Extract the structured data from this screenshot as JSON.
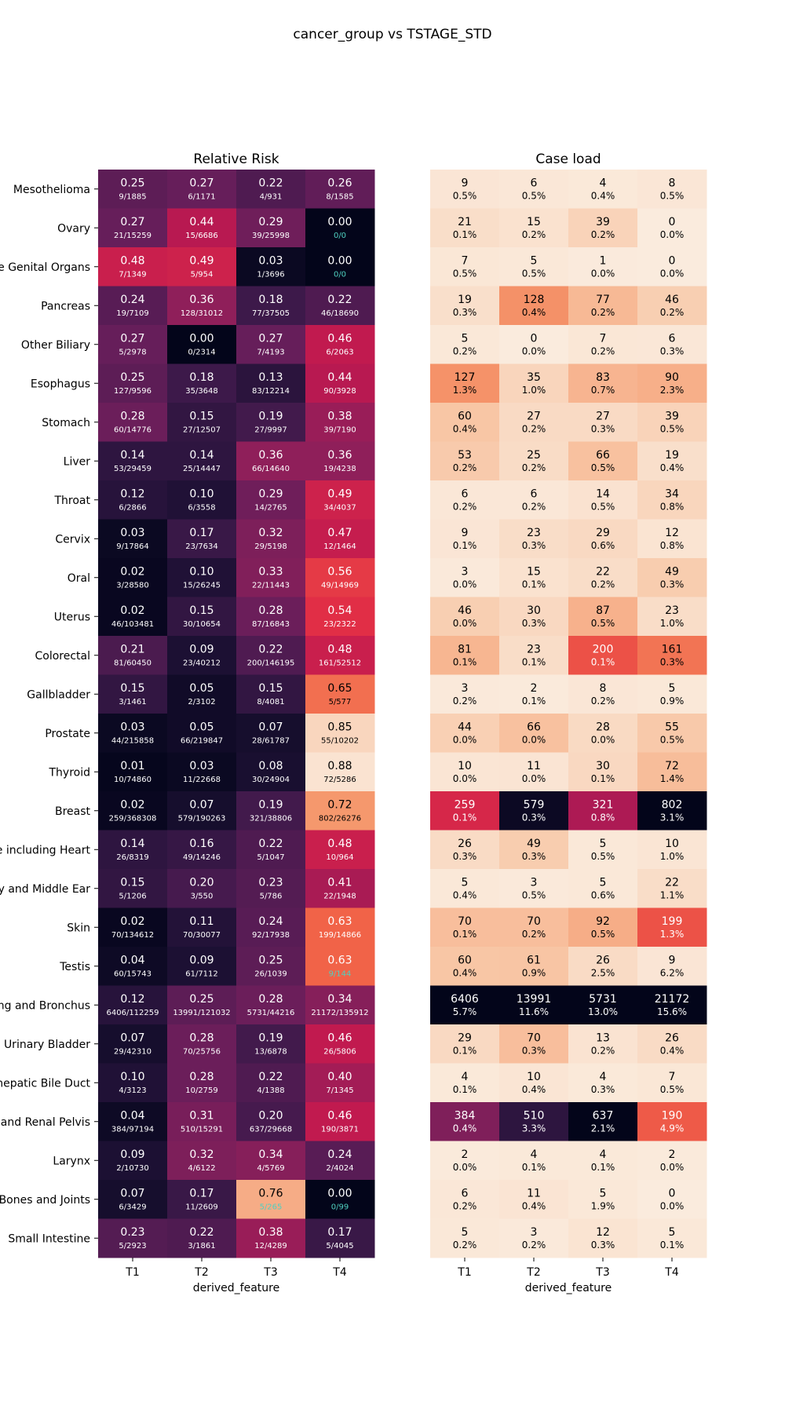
{
  "figure_title": "cancer_group vs TSTAGE_STD",
  "chart_data": [
    {
      "type": "heatmap",
      "title": "Relative Risk",
      "xlabel": "derived_feature",
      "ylabel": "",
      "colormap": "rocket",
      "vmin": 0,
      "vmax": 0.9,
      "categories_x": [
        "T1",
        "T2",
        "T3",
        "T4"
      ],
      "categories_y": [
        "Mesothelioma",
        "Ovary",
        "e Genital Organs",
        "Pancreas",
        "Other Biliary",
        "Esophagus",
        "Stomach",
        "Liver",
        "Throat",
        "Cervix",
        "Oral",
        "Uterus",
        "Colorectal",
        "Gallbladder",
        "Prostate",
        "Thyroid",
        "Breast",
        "e including Heart",
        "y and Middle Ear",
        "Skin",
        "Testis",
        "ng and Bronchus",
        "Urinary Bladder",
        "hepatic Bile Duct",
        "and Renal Pelvis",
        "Larynx",
        "Bones and Joints",
        "Small Intestine"
      ],
      "values": [
        [
          0.25,
          0.27,
          0.22,
          0.26
        ],
        [
          0.27,
          0.44,
          0.29,
          0.0
        ],
        [
          0.48,
          0.49,
          0.03,
          0.0
        ],
        [
          0.24,
          0.36,
          0.18,
          0.22
        ],
        [
          0.27,
          0.0,
          0.27,
          0.46
        ],
        [
          0.25,
          0.18,
          0.13,
          0.44
        ],
        [
          0.28,
          0.15,
          0.19,
          0.38
        ],
        [
          0.14,
          0.14,
          0.36,
          0.36
        ],
        [
          0.12,
          0.1,
          0.29,
          0.49
        ],
        [
          0.03,
          0.17,
          0.32,
          0.47
        ],
        [
          0.02,
          0.1,
          0.33,
          0.56
        ],
        [
          0.02,
          0.15,
          0.28,
          0.54
        ],
        [
          0.21,
          0.09,
          0.22,
          0.48
        ],
        [
          0.15,
          0.05,
          0.15,
          0.65
        ],
        [
          0.03,
          0.05,
          0.07,
          0.85
        ],
        [
          0.01,
          0.03,
          0.08,
          0.88
        ],
        [
          0.02,
          0.07,
          0.19,
          0.72
        ],
        [
          0.14,
          0.16,
          0.22,
          0.48
        ],
        [
          0.15,
          0.2,
          0.23,
          0.41
        ],
        [
          0.02,
          0.11,
          0.24,
          0.63
        ],
        [
          0.04,
          0.09,
          0.25,
          0.63
        ],
        [
          0.12,
          0.25,
          0.28,
          0.34
        ],
        [
          0.07,
          0.28,
          0.19,
          0.46
        ],
        [
          0.1,
          0.28,
          0.22,
          0.4
        ],
        [
          0.04,
          0.31,
          0.2,
          0.46
        ],
        [
          0.09,
          0.32,
          0.34,
          0.24
        ],
        [
          0.07,
          0.17,
          0.76,
          0.0
        ],
        [
          0.23,
          0.22,
          0.38,
          0.17
        ]
      ],
      "labels": [
        [
          "0.25",
          "0.27",
          "0.22",
          "0.26"
        ],
        [
          "0.27",
          "0.44",
          "0.29",
          "0.00"
        ],
        [
          "0.48",
          "0.49",
          "0.03",
          "0.00"
        ],
        [
          "0.24",
          "0.36",
          "0.18",
          "0.22"
        ],
        [
          "0.27",
          "0.00",
          "0.27",
          "0.46"
        ],
        [
          "0.25",
          "0.18",
          "0.13",
          "0.44"
        ],
        [
          "0.28",
          "0.15",
          "0.19",
          "0.38"
        ],
        [
          "0.14",
          "0.14",
          "0.36",
          "0.36"
        ],
        [
          "0.12",
          "0.10",
          "0.29",
          "0.49"
        ],
        [
          "0.03",
          "0.17",
          "0.32",
          "0.47"
        ],
        [
          "0.02",
          "0.10",
          "0.33",
          "0.56"
        ],
        [
          "0.02",
          "0.15",
          "0.28",
          "0.54"
        ],
        [
          "0.21",
          "0.09",
          "0.22",
          "0.48"
        ],
        [
          "0.15",
          "0.05",
          "0.15",
          "0.65"
        ],
        [
          "0.03",
          "0.05",
          "0.07",
          "0.85"
        ],
        [
          "0.01",
          "0.03",
          "0.08",
          "0.88"
        ],
        [
          "0.02",
          "0.07",
          "0.19",
          "0.72"
        ],
        [
          "0.14",
          "0.16",
          "0.22",
          "0.48"
        ],
        [
          "0.15",
          "0.20",
          "0.23",
          "0.41"
        ],
        [
          "0.02",
          "0.11",
          "0.24",
          "0.63"
        ],
        [
          "0.04",
          "0.09",
          "0.25",
          "0.63"
        ],
        [
          "0.12",
          "0.25",
          "0.28",
          "0.34"
        ],
        [
          "0.07",
          "0.28",
          "0.19",
          "0.46"
        ],
        [
          "0.10",
          "0.28",
          "0.22",
          "0.40"
        ],
        [
          "0.04",
          "0.31",
          "0.20",
          "0.46"
        ],
        [
          "0.09",
          "0.32",
          "0.34",
          "0.24"
        ],
        [
          "0.07",
          "0.17",
          "0.76",
          "0.00"
        ],
        [
          "0.23",
          "0.22",
          "0.38",
          "0.17"
        ]
      ],
      "sublabels": [
        [
          "9/1885",
          "6/1171",
          "4/931",
          "8/1585"
        ],
        [
          "21/15259",
          "15/6686",
          "39/25998",
          "0/0"
        ],
        [
          "7/1349",
          "5/954",
          "1/3696",
          "0/0"
        ],
        [
          "19/7109",
          "128/31012",
          "77/37505",
          "46/18690"
        ],
        [
          "5/2978",
          "0/2314",
          "7/4193",
          "6/2063"
        ],
        [
          "127/9596",
          "35/3648",
          "83/12214",
          "90/3928"
        ],
        [
          "60/14776",
          "27/12507",
          "27/9997",
          "39/7190"
        ],
        [
          "53/29459",
          "25/14447",
          "66/14640",
          "19/4238"
        ],
        [
          "6/2866",
          "6/3558",
          "14/2765",
          "34/4037"
        ],
        [
          "9/17864",
          "23/7634",
          "29/5198",
          "12/1464"
        ],
        [
          "3/28580",
          "15/26245",
          "22/11443",
          "49/14969"
        ],
        [
          "46/103481",
          "30/10654",
          "87/16843",
          "23/2322"
        ],
        [
          "81/60450",
          "23/40212",
          "200/146195",
          "161/52512"
        ],
        [
          "3/1461",
          "2/3102",
          "8/4081",
          "5/577"
        ],
        [
          "44/215858",
          "66/219847",
          "28/61787",
          "55/10202"
        ],
        [
          "10/74860",
          "11/22668",
          "30/24904",
          "72/5286"
        ],
        [
          "259/368308",
          "579/190263",
          "321/38806",
          "802/26276"
        ],
        [
          "26/8319",
          "49/14246",
          "5/1047",
          "10/964"
        ],
        [
          "5/1206",
          "3/550",
          "5/786",
          "22/1948"
        ],
        [
          "70/134612",
          "70/30077",
          "92/17938",
          "199/14866"
        ],
        [
          "60/15743",
          "61/7112",
          "26/1039",
          "9/144"
        ],
        [
          "6406/112259",
          "13991/121032",
          "5731/44216",
          "21172/135912"
        ],
        [
          "29/42310",
          "70/25756",
          "13/6878",
          "26/5806"
        ],
        [
          "4/3123",
          "10/2759",
          "4/1388",
          "7/1345"
        ],
        [
          "384/97194",
          "510/15291",
          "637/29668",
          "190/3871"
        ],
        [
          "2/10730",
          "4/6122",
          "4/5769",
          "2/4024"
        ],
        [
          "6/3429",
          "11/2609",
          "5/265",
          "0/99"
        ],
        [
          "5/2923",
          "3/1861",
          "12/4289",
          "5/4045"
        ]
      ],
      "highlight_sublabels": [
        [
          1,
          3
        ],
        [
          2,
          3
        ],
        [
          20,
          3
        ],
        [
          26,
          2
        ],
        [
          26,
          3
        ]
      ],
      "highlight_color": "#4fd0c0"
    },
    {
      "type": "heatmap",
      "title": "Case load",
      "xlabel": "derived_feature",
      "ylabel": "",
      "colormap": "rocket_r",
      "vmin": 0,
      "vmax": 600,
      "categories_x": [
        "T1",
        "T2",
        "T3",
        "T4"
      ],
      "categories_y": [
        "Mesothelioma",
        "Ovary",
        "e Genital Organs",
        "Pancreas",
        "Other Biliary",
        "Esophagus",
        "Stomach",
        "Liver",
        "Throat",
        "Cervix",
        "Oral",
        "Uterus",
        "Colorectal",
        "Gallbladder",
        "Prostate",
        "Thyroid",
        "Breast",
        "e including Heart",
        "y and Middle Ear",
        "Skin",
        "Testis",
        "ng and Bronchus",
        "Urinary Bladder",
        "hepatic Bile Duct",
        "and Renal Pelvis",
        "Larynx",
        "Bones and Joints",
        "Small Intestine"
      ],
      "values": [
        [
          9,
          6,
          4,
          8
        ],
        [
          21,
          15,
          39,
          0
        ],
        [
          7,
          5,
          1,
          0
        ],
        [
          19,
          128,
          77,
          46
        ],
        [
          5,
          0,
          7,
          6
        ],
        [
          127,
          35,
          83,
          90
        ],
        [
          60,
          27,
          27,
          39
        ],
        [
          53,
          25,
          66,
          19
        ],
        [
          6,
          6,
          14,
          34
        ],
        [
          9,
          23,
          29,
          12
        ],
        [
          3,
          15,
          22,
          49
        ],
        [
          46,
          30,
          87,
          23
        ],
        [
          81,
          23,
          200,
          161
        ],
        [
          3,
          2,
          8,
          5
        ],
        [
          44,
          66,
          28,
          55
        ],
        [
          10,
          11,
          30,
          72
        ],
        [
          259,
          579,
          321,
          802
        ],
        [
          26,
          49,
          5,
          10
        ],
        [
          5,
          3,
          5,
          22
        ],
        [
          70,
          70,
          92,
          199
        ],
        [
          60,
          61,
          26,
          9
        ],
        [
          6406,
          13991,
          5731,
          21172
        ],
        [
          29,
          70,
          13,
          26
        ],
        [
          4,
          10,
          4,
          7
        ],
        [
          384,
          510,
          637,
          190
        ],
        [
          2,
          4,
          4,
          2
        ],
        [
          6,
          11,
          5,
          0
        ],
        [
          5,
          3,
          12,
          5
        ]
      ],
      "sublabels": [
        [
          "0.5%",
          "0.5%",
          "0.4%",
          "0.5%"
        ],
        [
          "0.1%",
          "0.2%",
          "0.2%",
          "0.0%"
        ],
        [
          "0.5%",
          "0.5%",
          "0.0%",
          "0.0%"
        ],
        [
          "0.3%",
          "0.4%",
          "0.2%",
          "0.2%"
        ],
        [
          "0.2%",
          "0.0%",
          "0.2%",
          "0.3%"
        ],
        [
          "1.3%",
          "1.0%",
          "0.7%",
          "2.3%"
        ],
        [
          "0.4%",
          "0.2%",
          "0.3%",
          "0.5%"
        ],
        [
          "0.2%",
          "0.2%",
          "0.5%",
          "0.4%"
        ],
        [
          "0.2%",
          "0.2%",
          "0.5%",
          "0.8%"
        ],
        [
          "0.1%",
          "0.3%",
          "0.6%",
          "0.8%"
        ],
        [
          "0.0%",
          "0.1%",
          "0.2%",
          "0.3%"
        ],
        [
          "0.0%",
          "0.3%",
          "0.5%",
          "1.0%"
        ],
        [
          "0.1%",
          "0.1%",
          "0.1%",
          "0.3%"
        ],
        [
          "0.2%",
          "0.1%",
          "0.2%",
          "0.9%"
        ],
        [
          "0.0%",
          "0.0%",
          "0.0%",
          "0.5%"
        ],
        [
          "0.0%",
          "0.0%",
          "0.1%",
          "1.4%"
        ],
        [
          "0.1%",
          "0.3%",
          "0.8%",
          "3.1%"
        ],
        [
          "0.3%",
          "0.3%",
          "0.5%",
          "1.0%"
        ],
        [
          "0.4%",
          "0.5%",
          "0.6%",
          "1.1%"
        ],
        [
          "0.1%",
          "0.2%",
          "0.5%",
          "1.3%"
        ],
        [
          "0.4%",
          "0.9%",
          "2.5%",
          "6.2%"
        ],
        [
          "5.7%",
          "11.6%",
          "13.0%",
          "15.6%"
        ],
        [
          "0.1%",
          "0.3%",
          "0.2%",
          "0.4%"
        ],
        [
          "0.1%",
          "0.4%",
          "0.3%",
          "0.5%"
        ],
        [
          "0.4%",
          "3.3%",
          "2.1%",
          "4.9%"
        ],
        [
          "0.0%",
          "0.1%",
          "0.1%",
          "0.0%"
        ],
        [
          "0.2%",
          "0.4%",
          "1.9%",
          "0.0%"
        ],
        [
          "0.2%",
          "0.2%",
          "0.3%",
          "0.1%"
        ]
      ]
    }
  ]
}
